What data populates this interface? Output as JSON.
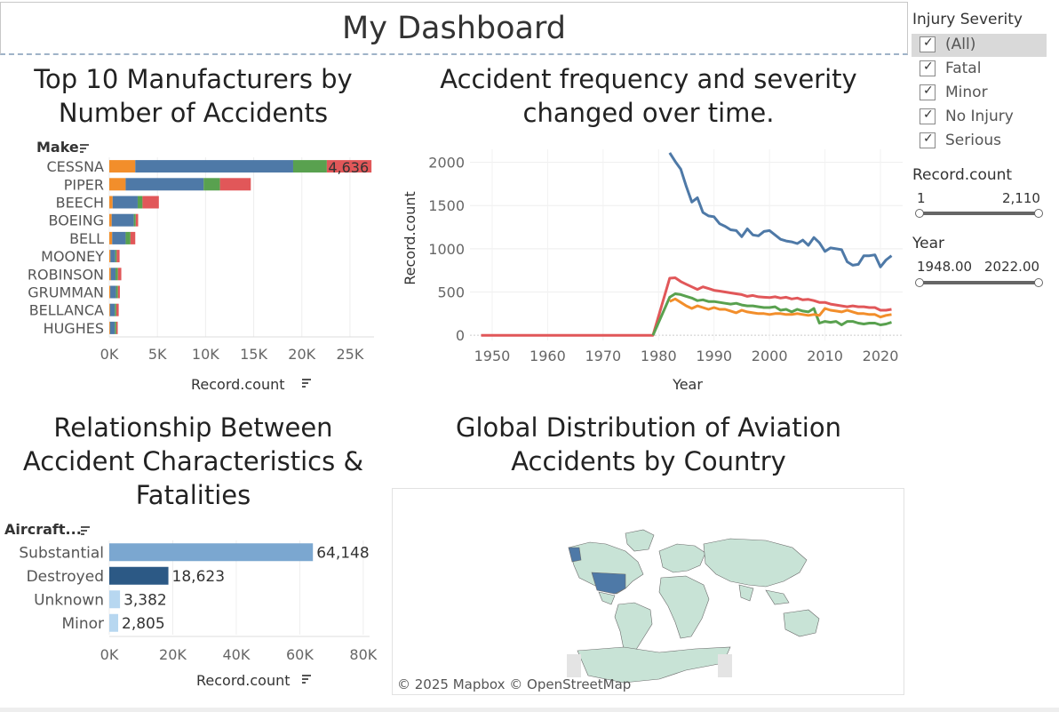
{
  "dashboard": {
    "title": "My Dashboard"
  },
  "legend": {
    "title": "Injury Severity",
    "items": [
      {
        "label": "(All)",
        "checked": true,
        "selected": true
      },
      {
        "label": "Fatal",
        "checked": true
      },
      {
        "label": "Minor",
        "checked": true
      },
      {
        "label": "No Injury",
        "checked": true
      },
      {
        "label": "Serious",
        "checked": true
      }
    ]
  },
  "filters": {
    "record_count": {
      "title": "Record.count",
      "min": "1",
      "max": "2,110"
    },
    "year": {
      "title": "Year",
      "min": "1948.00",
      "max": "2022.00"
    }
  },
  "colors": {
    "no_injury": "#4e79a7",
    "fatal": "#e15759",
    "minor": "#f28e2b",
    "serious": "#59a14f",
    "substantial": "#7ba7d0",
    "destroyed": "#2c5985",
    "light_blue": "#b7d7f0"
  },
  "chart_data": [
    {
      "type": "bar",
      "orientation": "horizontal",
      "stacked": true,
      "title": "Top 10 Manufacturers by Number of Accidents",
      "row_header": "Make",
      "xlabel": "Record.count",
      "xlim": [
        0,
        27500
      ],
      "ticks": [
        "0K",
        "5K",
        "10K",
        "15K",
        "20K",
        "25K"
      ],
      "tick_values": [
        0,
        5000,
        10000,
        15000,
        20000,
        25000
      ],
      "categories": [
        "CESSNA",
        "PIPER",
        "BEECH",
        "BOEING",
        "BELL",
        "MOONEY",
        "ROBINSON",
        "GRUMMAN",
        "BELLANCA",
        "HUGHES"
      ],
      "series": [
        {
          "name": "Minor",
          "color": "#f28e2b",
          "values": [
            2700,
            1700,
            350,
            250,
            300,
            120,
            150,
            100,
            80,
            80
          ]
        },
        {
          "name": "No Injury",
          "color": "#4e79a7",
          "values": [
            16400,
            8100,
            2600,
            2300,
            1400,
            500,
            500,
            600,
            500,
            500
          ]
        },
        {
          "name": "Serious",
          "color": "#59a14f",
          "values": [
            3500,
            1700,
            500,
            200,
            500,
            150,
            250,
            200,
            150,
            150
          ]
        },
        {
          "name": "Fatal",
          "color": "#e15759",
          "values": [
            4636,
            3200,
            1700,
            250,
            500,
            300,
            350,
            200,
            250,
            150
          ]
        }
      ],
      "data_label": {
        "category": "CESSNA",
        "text": "4,636"
      }
    },
    {
      "type": "line",
      "title": "Accident frequency and severity changed over time.",
      "xlabel": "Year",
      "ylabel": "Record.count",
      "xlim": [
        1946,
        2024
      ],
      "ylim": [
        -60,
        2150
      ],
      "xticks": [
        1950,
        1960,
        1970,
        1980,
        1990,
        2000,
        2010,
        2020
      ],
      "yticks": [
        0,
        500,
        1000,
        1500,
        2000
      ],
      "series": [
        {
          "name": "No Injury",
          "color": "#4e79a7",
          "x": [
            1982,
            1983,
            1984,
            1985,
            1986,
            1987,
            1988,
            1989,
            1990,
            1991,
            1992,
            1993,
            1994,
            1995,
            1996,
            1997,
            1998,
            1999,
            2000,
            2001,
            2002,
            2003,
            2004,
            2005,
            2006,
            2007,
            2008,
            2009,
            2010,
            2011,
            2012,
            2013,
            2014,
            2015,
            2016,
            2017,
            2018,
            2019,
            2020,
            2021,
            2022
          ],
          "y": [
            2110,
            2010,
            1920,
            1720,
            1540,
            1590,
            1420,
            1380,
            1370,
            1290,
            1260,
            1220,
            1210,
            1140,
            1230,
            1160,
            1150,
            1200,
            1210,
            1160,
            1110,
            1090,
            1080,
            1060,
            1100,
            1040,
            1130,
            1070,
            970,
            1010,
            1000,
            990,
            850,
            810,
            820,
            920,
            920,
            930,
            790,
            870,
            920
          ]
        },
        {
          "name": "Fatal",
          "color": "#e15759",
          "x": [
            1948,
            1950,
            1960,
            1970,
            1979,
            1982,
            1983,
            1984,
            1985,
            1986,
            1987,
            1988,
            1989,
            1990,
            1991,
            1992,
            1993,
            1994,
            1995,
            1996,
            1997,
            1998,
            1999,
            2000,
            2001,
            2002,
            2003,
            2004,
            2005,
            2006,
            2007,
            2008,
            2009,
            2010,
            2011,
            2012,
            2013,
            2014,
            2015,
            2016,
            2017,
            2018,
            2019,
            2020,
            2021,
            2022
          ],
          "y": [
            0,
            0,
            0,
            0,
            0,
            660,
            665,
            620,
            590,
            560,
            530,
            560,
            540,
            520,
            510,
            500,
            490,
            480,
            470,
            450,
            460,
            445,
            440,
            435,
            445,
            430,
            440,
            420,
            430,
            410,
            415,
            400,
            380,
            380,
            360,
            350,
            340,
            330,
            340,
            330,
            330,
            320,
            320,
            290,
            290,
            300
          ]
        },
        {
          "name": "Serious",
          "color": "#59a14f",
          "x": [
            1979,
            1982,
            1983,
            1984,
            1985,
            1986,
            1987,
            1988,
            1989,
            1990,
            1991,
            1992,
            1993,
            1994,
            1995,
            1996,
            1997,
            1998,
            1999,
            2000,
            2001,
            2002,
            2003,
            2004,
            2005,
            2006,
            2007,
            2008,
            2009,
            2010,
            2011,
            2012,
            2013,
            2014,
            2015,
            2016,
            2017,
            2018,
            2019,
            2020,
            2021,
            2022
          ],
          "y": [
            0,
            440,
            480,
            470,
            450,
            430,
            400,
            410,
            390,
            390,
            380,
            370,
            360,
            370,
            350,
            340,
            340,
            330,
            320,
            320,
            330,
            290,
            300,
            270,
            300,
            280,
            270,
            310,
            140,
            160,
            150,
            160,
            120,
            160,
            160,
            140,
            130,
            140,
            140,
            120,
            130,
            150
          ]
        },
        {
          "name": "Minor",
          "color": "#f28e2b",
          "x": [
            1982,
            1983,
            1984,
            1985,
            1986,
            1987,
            1988,
            1989,
            1990,
            1991,
            1992,
            1993,
            1994,
            1995,
            1996,
            1997,
            1998,
            1999,
            2000,
            2001,
            2002,
            2003,
            2004,
            2005,
            2006,
            2007,
            2008,
            2009,
            2010,
            2011,
            2012,
            2013,
            2014,
            2015,
            2016,
            2017,
            2018,
            2019,
            2020,
            2021,
            2022
          ],
          "y": [
            390,
            420,
            380,
            340,
            310,
            340,
            320,
            300,
            320,
            300,
            300,
            280,
            260,
            290,
            270,
            260,
            250,
            250,
            240,
            250,
            250,
            240,
            240,
            250,
            240,
            230,
            240,
            230,
            310,
            290,
            280,
            270,
            290,
            270,
            250,
            250,
            240,
            240,
            210,
            230,
            240
          ]
        }
      ]
    },
    {
      "type": "bar",
      "orientation": "horizontal",
      "title": "Relationship Between Accident Characteristics & Fatalities",
      "row_header": "Aircraft...",
      "xlabel": "Record.count",
      "xlim": [
        0,
        82000
      ],
      "ticks": [
        "0K",
        "20K",
        "40K",
        "60K",
        "80K"
      ],
      "tick_values": [
        0,
        20000,
        40000,
        60000,
        80000
      ],
      "categories": [
        "Substantial",
        "Destroyed",
        "Unknown",
        "Minor"
      ],
      "values": [
        64148,
        18623,
        3382,
        2805
      ],
      "labels": [
        "64,148",
        "18,623",
        "3,382",
        "2,805"
      ],
      "colors": [
        "#7ba7d0",
        "#2c5985",
        "#b7d7f0",
        "#b7d7f0"
      ]
    }
  ],
  "map": {
    "title": "Global Distribution of Aviation Accidents by Country",
    "credit": "© 2025 Mapbox © OpenStreetMap"
  }
}
